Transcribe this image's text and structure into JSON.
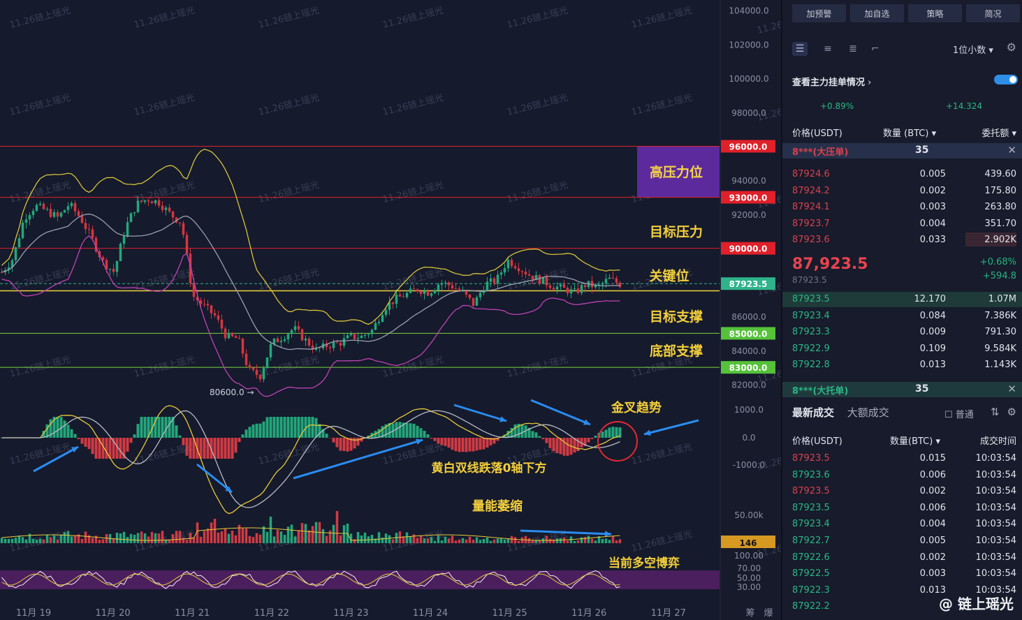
{
  "chart_data": {
    "type": "candlestick",
    "x_labels": [
      "11月 19",
      "11月 20",
      "11月 21",
      "11月 22",
      "11月 23",
      "11月 24",
      "11月 25",
      "11月 26",
      "11月 27"
    ],
    "y_labels": [
      "104000.0",
      "102000.0",
      "100000.0",
      "98000.0",
      "96000.0",
      "94000.0",
      "93000.0",
      "92000.0",
      "90000.0",
      "87923.5",
      "86000.0",
      "85000.0",
      "84000.0",
      "83000.0",
      "82000.0"
    ],
    "ylim": [
      81200,
      104600
    ],
    "price_levels": [
      {
        "label": "96000.0",
        "value": 96000,
        "color": "#e0202a",
        "badge": "#e0202a"
      },
      {
        "label": "93000.0",
        "value": 93000,
        "color": "#e0202a",
        "badge": "#e0202a"
      },
      {
        "label": "90000.0",
        "value": 90000,
        "color": "#e0202a",
        "badge": "#e0202a"
      },
      {
        "label": "87923.5",
        "value": 87923.5,
        "color": "#2fb38a",
        "badge": "#2fb38a",
        "dashed": true
      },
      {
        "label": "85000.0",
        "value": 85000,
        "color": "#7dd43c",
        "badge": "#55c23a"
      },
      {
        "label": "83000.0",
        "value": 83000,
        "color": "#7dd43c",
        "badge": "#55c23a"
      }
    ],
    "yellow_line": 87500,
    "annotations": {
      "high_pressure": "高压力位",
      "target_pressure": "目标压力",
      "key_level": "关键位",
      "target_support": "目标支撑",
      "bottom_support": "底部支撑",
      "low_mark": "80600.0 →",
      "golden_cross": "金叉趋势",
      "macd_note": "黄白双线跌落0轴下方",
      "volume_note": "量能萎缩",
      "kdj_note": "当前多空博弈"
    },
    "close_path": [
      88600,
      89400,
      91800,
      92500,
      92200,
      91800,
      92600,
      91800,
      90600,
      89200,
      88600,
      91200,
      92600,
      92900,
      92700,
      92000,
      91500,
      87200,
      86600,
      86000,
      84800,
      84700,
      82800,
      82500,
      84400,
      84800,
      85300,
      84600,
      84000,
      84300,
      84400,
      84800,
      84800,
      85200,
      86500,
      87000,
      87300,
      87600,
      87400,
      88000,
      87800,
      87400,
      86700,
      87900,
      88100,
      89300,
      88900,
      88400,
      88100,
      87800,
      87600,
      87400,
      87900,
      87700,
      88200,
      87900
    ],
    "macd": {
      "axis_labels": [
        "1000.0",
        "0.0",
        "-1000.0"
      ]
    },
    "volume": {
      "axis_label": "50.00k",
      "current": "146"
    },
    "kdj": {
      "axis_labels": [
        "100.00",
        "70.00",
        "50.00",
        "30.00"
      ]
    },
    "watermark": "11.26链上瑶光",
    "bottom_right_labels": [
      "筹",
      "爆"
    ]
  },
  "panel": {
    "top_buttons": [
      "加预警",
      "加自选",
      "策略",
      "简况"
    ],
    "decimal_label": "1位小数",
    "order_title": "查看主力挂单情况",
    "ratio_left": "+0.89%",
    "ratio_right": "+14.324",
    "headers": {
      "price": "价格(USDT)",
      "qty": "数量 (BTC)",
      "total": "委托额"
    },
    "ask_big": {
      "name": "8***(大压单)",
      "qty": "35"
    },
    "asks": [
      {
        "price": "87924.6",
        "qty": "0.005",
        "total": "439.60"
      },
      {
        "price": "87924.2",
        "qty": "0.002",
        "total": "175.80"
      },
      {
        "price": "87924.1",
        "qty": "0.003",
        "total": "263.80"
      },
      {
        "price": "87923.7",
        "qty": "0.004",
        "total": "351.70"
      },
      {
        "price": "87923.6",
        "qty": "0.033",
        "total": "2.902K"
      }
    ],
    "last_price": "87,923.5",
    "last_sub": "87923.5",
    "change_pct": "+0.68%",
    "change_abs": "+594.8",
    "bids": [
      {
        "price": "87923.5",
        "qty": "12.170",
        "total": "1.07M"
      },
      {
        "price": "87923.4",
        "qty": "0.084",
        "total": "7.386K"
      },
      {
        "price": "87923.3",
        "qty": "0.009",
        "total": "791.30"
      },
      {
        "price": "87922.9",
        "qty": "0.109",
        "total": "9.584K"
      },
      {
        "price": "87922.8",
        "qty": "0.013",
        "total": "1.143K"
      }
    ],
    "bid_big": {
      "name": "8***(大托单)",
      "qty": "35"
    },
    "trade_tabs": [
      "最新成交",
      "大额成交"
    ],
    "normal_label": "普通",
    "trade_headers": {
      "price": "价格(USDT)",
      "qty": "数量(BTC)",
      "time": "成交时间"
    },
    "trades": [
      {
        "price": "87923.5",
        "qty": "0.015",
        "time": "10:03:54",
        "side": "red"
      },
      {
        "price": "87923.6",
        "qty": "0.006",
        "time": "10:03:54",
        "side": "green"
      },
      {
        "price": "87923.5",
        "qty": "0.002",
        "time": "10:03:54",
        "side": "red"
      },
      {
        "price": "87923.5",
        "qty": "0.006",
        "time": "10:03:54",
        "side": "green"
      },
      {
        "price": "87923.4",
        "qty": "0.004",
        "time": "10:03:54",
        "side": "green"
      },
      {
        "price": "87922.7",
        "qty": "0.005",
        "time": "10:03:54",
        "side": "green"
      },
      {
        "price": "87922.6",
        "qty": "0.002",
        "time": "10:03:54",
        "side": "green"
      },
      {
        "price": "87922.5",
        "qty": "0.003",
        "time": "10:03:54",
        "side": "green"
      },
      {
        "price": "87922.3",
        "qty": "0.013",
        "time": "10:03:54",
        "side": "green"
      },
      {
        "price": "87922.2",
        "qty": "",
        "time": "",
        "side": "green"
      }
    ],
    "brand": "@ 链上瑶光"
  }
}
